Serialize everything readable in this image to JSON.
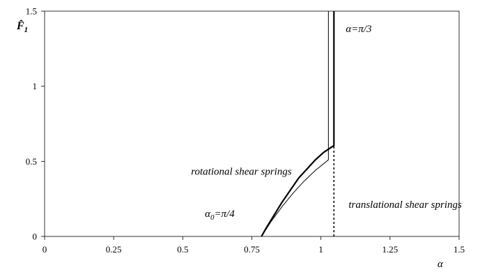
{
  "chart_data": {
    "type": "line",
    "title": "",
    "xlabel": "α",
    "ylabel": "F̂",
    "ylabel_subscript": "1",
    "xlim": [
      0,
      1.5
    ],
    "ylim": [
      0,
      1.5
    ],
    "x_ticks": [
      0,
      0.25,
      0.5,
      0.75,
      1,
      1.25,
      1.5
    ],
    "x_tick_labels": [
      "0",
      "0.25",
      "0.5",
      "0.75",
      "1",
      "1.25",
      "1.5"
    ],
    "y_ticks": [
      0,
      0.5,
      1,
      1.5
    ],
    "y_tick_labels": [
      "0",
      "0.5",
      "1",
      "1.5"
    ],
    "grid": false,
    "legend": "none",
    "series": [
      {
        "style": "solid-thick",
        "x": [
          0.785,
          0.8,
          0.83,
          0.86,
          0.89,
          0.92,
          0.95,
          0.98,
          1.01,
          1.047,
          1.047
        ],
        "y": [
          0,
          0.05,
          0.14,
          0.23,
          0.31,
          0.39,
          0.45,
          0.51,
          0.56,
          0.605,
          1.5
        ]
      },
      {
        "style": "solid-thin",
        "x": [
          0.785,
          0.82,
          0.86,
          0.9,
          0.94,
          0.98,
          1.027,
          1.027
        ],
        "y": [
          0,
          0.1,
          0.2,
          0.29,
          0.37,
          0.44,
          0.51,
          1.5
        ]
      },
      {
        "style": "dotted",
        "x": [
          1.047,
          1.047
        ],
        "y": [
          0,
          0.605
        ]
      }
    ],
    "annotations": [
      {
        "text": "α=π/3",
        "x": 1.09,
        "y": 1.36
      },
      {
        "text": "rotational shear springs",
        "x": 0.53,
        "y": 0.41
      },
      {
        "text": "translational shear springs",
        "x": 1.1,
        "y": 0.19
      },
      {
        "text": "α",
        "sub": "0",
        "rest": "=π/4",
        "x": 0.58,
        "y": 0.13
      }
    ]
  }
}
